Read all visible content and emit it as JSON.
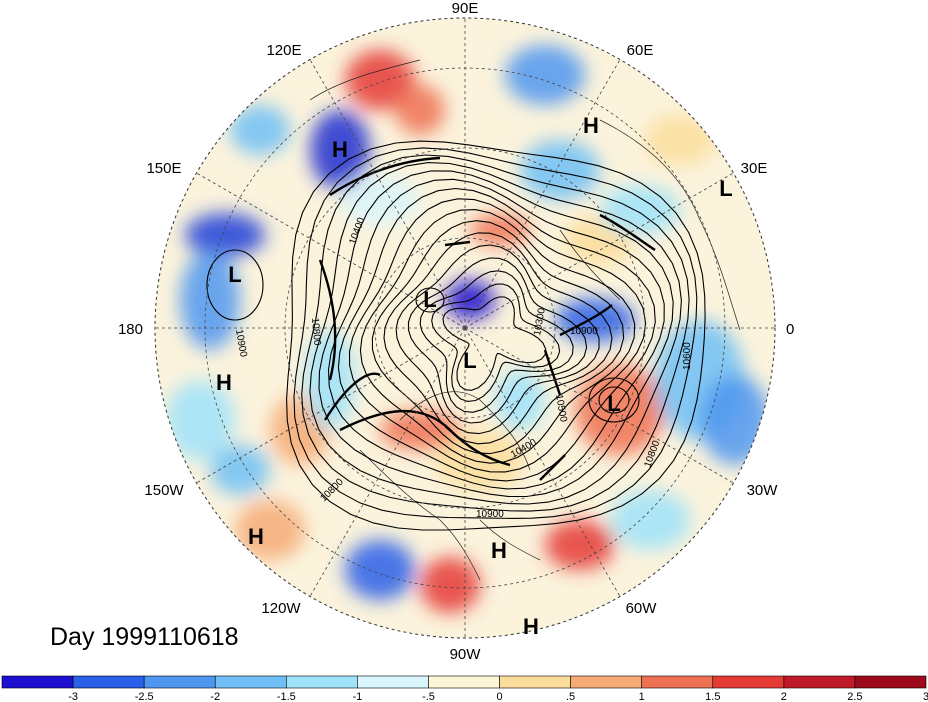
{
  "title": "Day 1999110618",
  "longitude_labels": {
    "n": "90E",
    "nne": "60E",
    "ene": "30E",
    "e": "0",
    "ese": "30W",
    "sse": "60W",
    "s": "90W",
    "ssw": "120W",
    "wsw": "150W",
    "w": "180",
    "wnw": "150E",
    "nnw": "120E"
  },
  "pressure_systems": [
    {
      "type": "H"
    },
    {
      "type": "L"
    },
    {
      "type": "L"
    },
    {
      "type": "H"
    },
    {
      "type": "L"
    },
    {
      "type": "L"
    },
    {
      "type": "L"
    },
    {
      "type": "H"
    },
    {
      "type": "H"
    },
    {
      "type": "H"
    },
    {
      "type": "H"
    }
  ],
  "contour_labels": [
    "10900",
    "10800",
    "10400",
    "10300",
    "10500",
    "10400",
    "10800",
    "10900",
    "10600",
    "10800",
    "10900"
  ],
  "colorbar": {
    "colors": [
      "#1c0fd0",
      "#2a5fe8",
      "#4f96f0",
      "#6fbff6",
      "#9ee3fa",
      "#d8f6fc",
      "#fdf6d6",
      "#fbdd9b",
      "#f6aa76",
      "#ef7153",
      "#e53b35",
      "#c0192a",
      "#9c0a1c"
    ],
    "ticks": [
      "-3",
      "-2.5",
      "-2",
      "-1.5",
      "-1",
      "-.5",
      "0",
      ".5",
      "1",
      "1.5",
      "2",
      "2.5",
      "3"
    ]
  }
}
